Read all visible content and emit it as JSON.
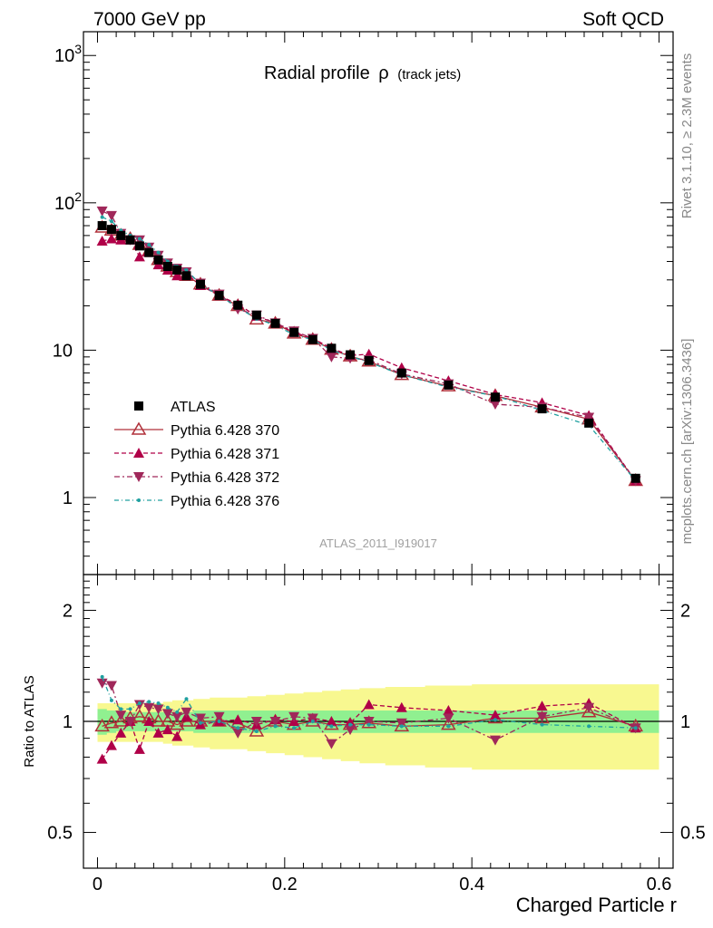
{
  "header": {
    "left": "7000 GeV pp",
    "right": "Soft QCD"
  },
  "side": {
    "rivet": "Rivet 3.1.10, ≥ 2.3M events",
    "mcplots": "mcplots.cern.ch [arXiv:1306.3436]"
  },
  "chart_data": [
    {
      "type": "line",
      "title": "Radial profile",
      "title_symbol": "ρ",
      "title_suffix": "(track jets)",
      "analysis_label": "ATLAS_2011_I919017",
      "xlabel": "",
      "ylabel": "",
      "y_scale": "log",
      "xlim": [
        -0.015,
        0.615
      ],
      "ylim": [
        0.3,
        1450
      ],
      "y_tick_labels": [
        "1",
        "10",
        "10^2",
        "10^3"
      ],
      "legend_position": "middle-left",
      "x": [
        0.005,
        0.015,
        0.025,
        0.035,
        0.045,
        0.055,
        0.065,
        0.075,
        0.085,
        0.095,
        0.11,
        0.13,
        0.15,
        0.17,
        0.19,
        0.21,
        0.23,
        0.25,
        0.27,
        0.29,
        0.325,
        0.375,
        0.425,
        0.475,
        0.525,
        0.575
      ],
      "series": [
        {
          "name": "ATLAS",
          "color": "#000000",
          "marker": "square",
          "values": [
            70,
            66,
            60,
            56,
            51,
            46,
            41,
            37,
            35,
            32,
            28,
            23.5,
            20.2,
            17.3,
            15.2,
            13.2,
            11.8,
            10.3,
            9.3,
            8.5,
            7.0,
            5.8,
            4.8,
            4.0,
            3.2,
            1.35
          ]
        },
        {
          "name": "Pythia 6.428 370",
          "color": "#b0303a",
          "marker": "triangle-up-open",
          "values": [
            68,
            65,
            60,
            57,
            52,
            47,
            41,
            37,
            34,
            32,
            28,
            23.5,
            20.0,
            16.2,
            15.2,
            13.0,
            11.8,
            10.1,
            9.1,
            8.4,
            6.8,
            5.7,
            4.9,
            4.1,
            3.4,
            1.3
          ]
        },
        {
          "name": "Pythia 6.428 371",
          "color": "#b00048",
          "marker": "triangle-up",
          "values": [
            55,
            57,
            56,
            56,
            43,
            46,
            38,
            35,
            32,
            33,
            27.5,
            23.5,
            20.5,
            17.0,
            15.3,
            13.2,
            12.0,
            10.3,
            9.2,
            9.4,
            7.6,
            6.2,
            5.0,
            4.4,
            3.6,
            1.3
          ]
        },
        {
          "name": "Pythia 6.428 372",
          "color": "#a0285a",
          "marker": "triangle-down",
          "values": [
            88,
            82,
            62,
            56,
            56,
            50,
            44,
            39,
            36,
            34,
            28.5,
            24.0,
            19.0,
            17.3,
            15.3,
            13.5,
            12.0,
            9.0,
            8.8,
            8.6,
            6.9,
            5.9,
            4.3,
            4.1,
            3.5,
            1.3
          ]
        },
        {
          "name": "Pythia 6.428 376",
          "color": "#20a0a0",
          "marker": "dot",
          "values": [
            80,
            75,
            65,
            60,
            57,
            52,
            46,
            40,
            37,
            35,
            28.0,
            23.5,
            19.5,
            16.3,
            14.8,
            12.7,
            11.8,
            10.0,
            9.1,
            8.3,
            6.8,
            5.6,
            4.9,
            3.9,
            3.1,
            1.3
          ]
        }
      ]
    },
    {
      "type": "line",
      "xlabel": "Charged Particle r",
      "ylabel": "Ratio to ATLAS",
      "y_scale": "log",
      "xlim": [
        -0.015,
        0.615
      ],
      "ylim": [
        0.4,
        2.5
      ],
      "x_ticks": [
        0,
        0.2,
        0.4,
        0.6
      ],
      "x_tick_labels": [
        "0",
        "0.2",
        "0.4",
        "0.6"
      ],
      "y_ticks": [
        0.5,
        1,
        2
      ],
      "y_tick_labels": [
        "0.5",
        "1",
        "2"
      ],
      "x": [
        0.005,
        0.015,
        0.025,
        0.035,
        0.045,
        0.055,
        0.065,
        0.075,
        0.085,
        0.095,
        0.11,
        0.13,
        0.15,
        0.17,
        0.19,
        0.21,
        0.23,
        0.25,
        0.27,
        0.29,
        0.325,
        0.375,
        0.425,
        0.475,
        0.525,
        0.575
      ],
      "bands": {
        "stat_color": "#90f090",
        "total_color": "#f8f890",
        "stat": [
          0.08,
          0.07,
          0.06,
          0.06,
          0.06,
          0.06,
          0.06,
          0.06,
          0.06,
          0.06,
          0.07,
          0.07,
          0.07,
          0.07,
          0.07,
          0.07,
          0.07,
          0.07,
          0.07,
          0.07,
          0.07,
          0.07,
          0.07,
          0.07,
          0.07,
          0.07
        ],
        "total": [
          0.12,
          0.12,
          0.12,
          0.12,
          0.12,
          0.12,
          0.12,
          0.13,
          0.14,
          0.14,
          0.15,
          0.16,
          0.16,
          0.17,
          0.18,
          0.19,
          0.2,
          0.21,
          0.22,
          0.23,
          0.24,
          0.25,
          0.26,
          0.26,
          0.26,
          0.26
        ]
      },
      "series": [
        {
          "name": "Pythia 6.428 370",
          "color": "#b0303a",
          "marker": "triangle-up-open",
          "values": [
            0.97,
            0.99,
            1.0,
            1.02,
            1.03,
            1.02,
            1.0,
            1.0,
            0.98,
            1.0,
            1.0,
            1.0,
            0.99,
            0.94,
            1.0,
            0.98,
            1.0,
            0.98,
            0.98,
            0.99,
            0.97,
            0.98,
            1.02,
            1.02,
            1.06,
            0.97
          ]
        },
        {
          "name": "Pythia 6.428 371",
          "color": "#b00048",
          "marker": "triangle-up",
          "values": [
            0.79,
            0.86,
            0.93,
            1.0,
            0.84,
            1.0,
            0.93,
            0.95,
            0.91,
            1.03,
            0.98,
            1.0,
            1.01,
            0.98,
            1.01,
            1.0,
            1.02,
            1.0,
            0.99,
            1.11,
            1.09,
            1.07,
            1.04,
            1.1,
            1.12,
            0.96
          ]
        },
        {
          "name": "Pythia 6.428 372",
          "color": "#a0285a",
          "marker": "triangle-down",
          "values": [
            1.27,
            1.25,
            1.04,
            1.0,
            1.11,
            1.09,
            1.08,
            1.05,
            1.03,
            1.06,
            1.02,
            1.03,
            0.93,
            1.0,
            1.0,
            1.03,
            1.02,
            0.87,
            0.95,
            1.0,
            0.99,
            1.02,
            0.89,
            1.03,
            1.09,
            0.96
          ]
        },
        {
          "name": "Pythia 6.428 376",
          "color": "#20a0a0",
          "marker": "dot",
          "values": [
            1.32,
            1.14,
            1.08,
            1.08,
            1.12,
            1.13,
            1.12,
            1.09,
            1.06,
            1.15,
            0.99,
            1.0,
            0.96,
            0.94,
            0.97,
            0.96,
            1.0,
            0.97,
            0.98,
            0.98,
            0.97,
            0.97,
            1.01,
            0.98,
            0.97,
            0.96
          ]
        }
      ]
    }
  ]
}
